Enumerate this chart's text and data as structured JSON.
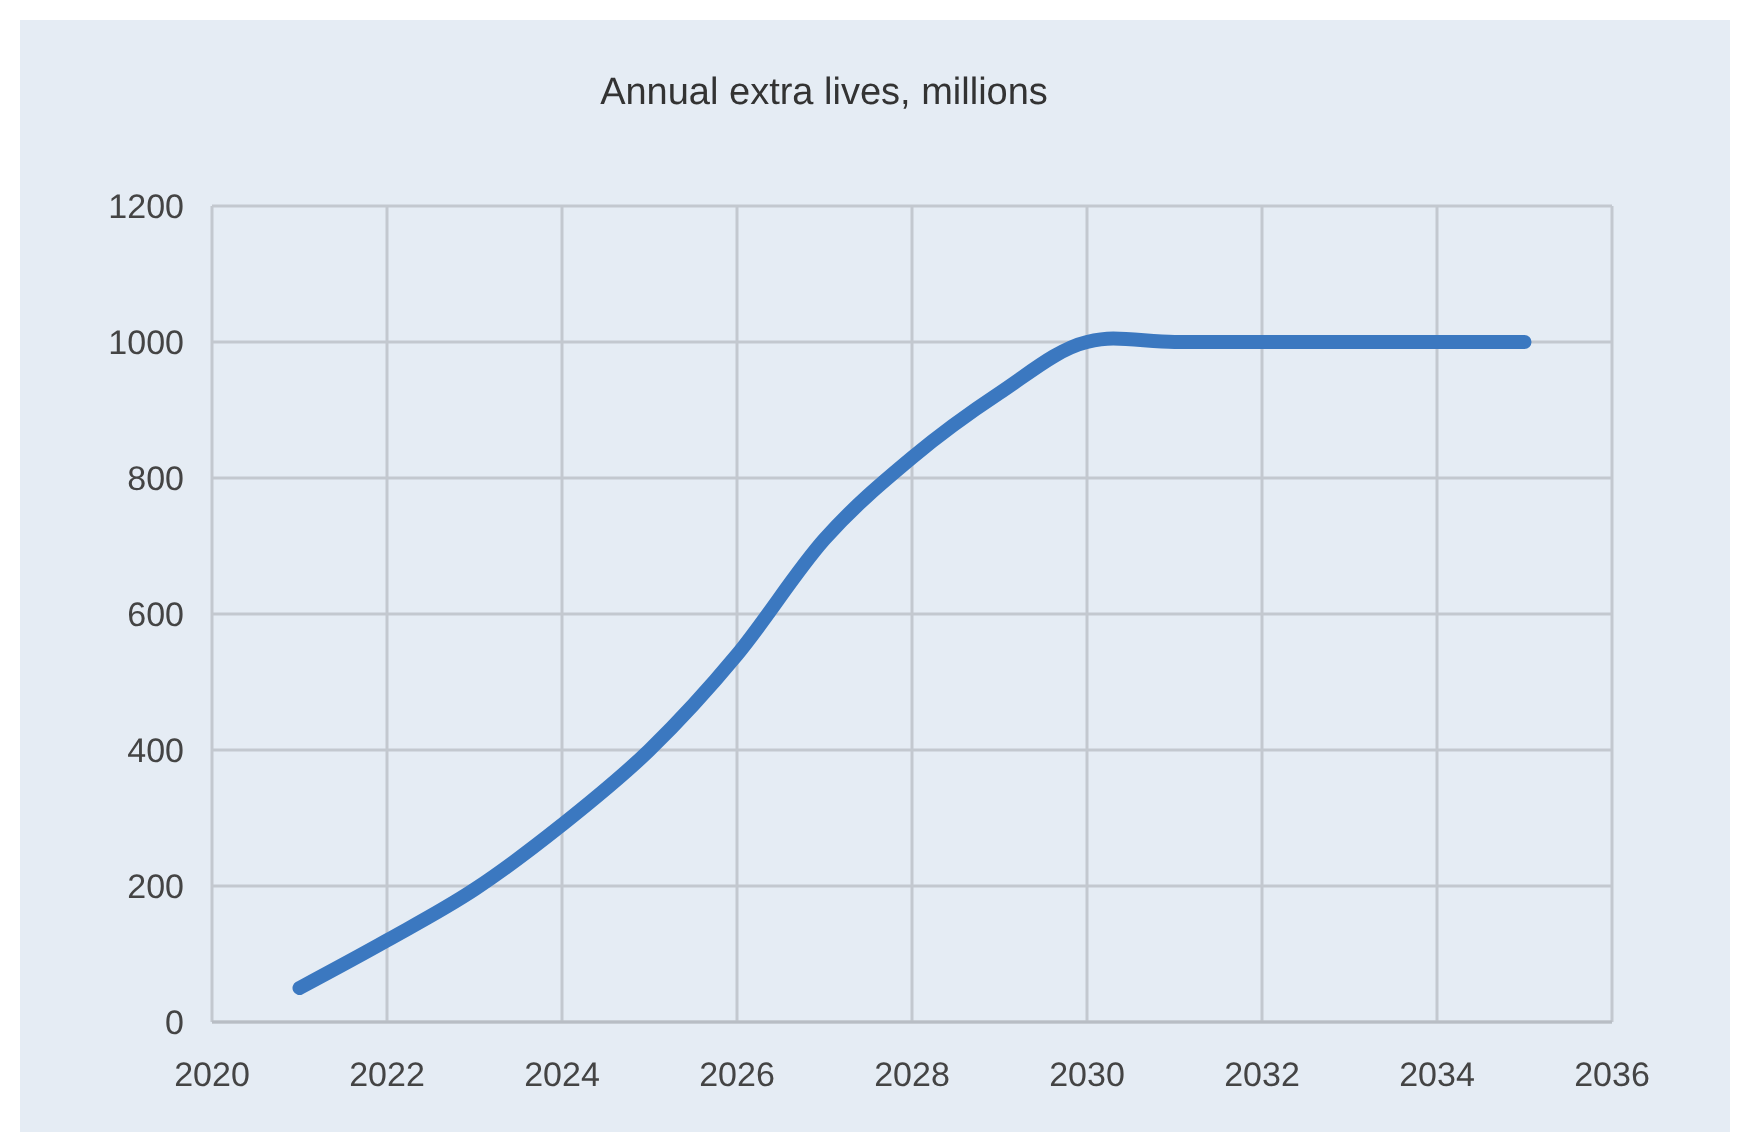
{
  "chart_data": {
    "type": "line",
    "title": "Annual extra lives, millions",
    "x": [
      2021,
      2022,
      2023,
      2024,
      2025,
      2026,
      2027,
      2028,
      2029,
      2030,
      2030.3,
      2031,
      2032,
      2033,
      2034,
      2035
    ],
    "series": [
      {
        "color": "#3b78c0",
        "values": [
          50,
          120,
          195,
          290,
          400,
          540,
          710,
          830,
          925,
          1000,
          1005,
          1000,
          1000,
          1000,
          1000,
          1000
        ]
      }
    ],
    "xlim": [
      2020,
      2036
    ],
    "xticks": [
      2020,
      2022,
      2024,
      2026,
      2028,
      2030,
      2032,
      2034,
      2036
    ],
    "ylim": [
      0,
      1200
    ],
    "yticks": [
      0,
      200,
      400,
      600,
      800,
      1000,
      1200
    ],
    "grid": true,
    "marker": "none",
    "line_style": "solid"
  }
}
